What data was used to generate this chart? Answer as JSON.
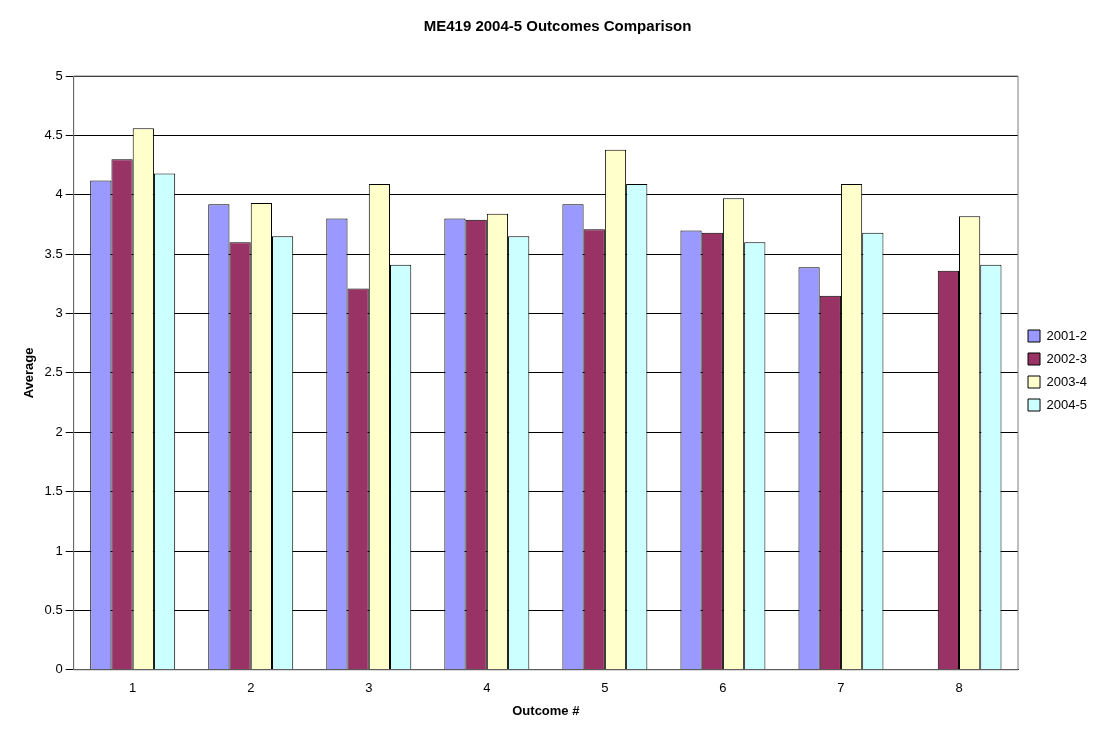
{
  "chart_data": {
    "type": "bar",
    "title": "ME419 2004-5 Outcomes Comparison",
    "xlabel": "Outcome #",
    "ylabel": "Average",
    "categories": [
      "1",
      "2",
      "3",
      "4",
      "5",
      "6",
      "7",
      "8"
    ],
    "series": [
      {
        "name": "2001-2",
        "color": "#9999ff",
        "values": [
          4.12,
          3.92,
          3.8,
          3.8,
          3.92,
          3.7,
          3.39,
          null
        ]
      },
      {
        "name": "2002-3",
        "color": "#993366",
        "values": [
          4.3,
          3.6,
          3.21,
          3.79,
          3.71,
          3.68,
          3.15,
          3.36
        ]
      },
      {
        "name": "2003-4",
        "color": "#ffffcc",
        "values": [
          4.56,
          3.93,
          4.09,
          3.84,
          4.38,
          3.97,
          4.09,
          3.82
        ]
      },
      {
        "name": "2004-5",
        "color": "#ccffff",
        "values": [
          4.18,
          3.65,
          3.41,
          3.65,
          4.09,
          3.6,
          3.68,
          3.41
        ]
      }
    ],
    "ylim": [
      0,
      5
    ],
    "yticks": [
      0,
      0.5,
      1,
      1.5,
      2,
      2.5,
      3,
      3.5,
      4,
      4.5,
      5
    ],
    "grid": "y",
    "legend": "right"
  }
}
